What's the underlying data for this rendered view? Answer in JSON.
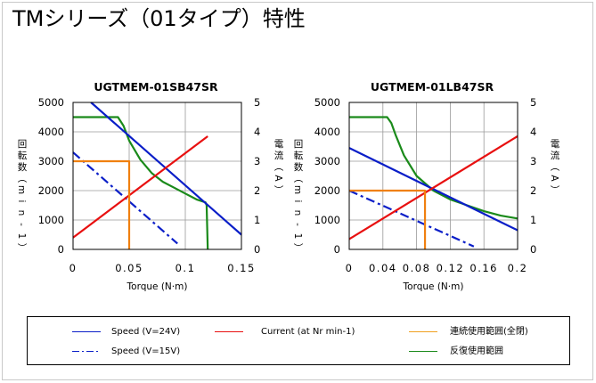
{
  "page": {
    "title": "TMシリーズ（01タイプ）特性"
  },
  "chart_data": [
    {
      "type": "line",
      "title": "UGTMEM-01SB47SR",
      "xlabel": "Torque (N·m)",
      "ylabel_left": "回転数（min-1）",
      "ylabel_right": "電流（A）",
      "xlim": [
        0,
        0.15
      ],
      "ylim_left": [
        0,
        5000
      ],
      "ylim_right": [
        0,
        5
      ],
      "x_ticks": [
        "0",
        "0.05",
        "0.1",
        "0.15"
      ],
      "x_tick_values": [
        0,
        0.05,
        0.1,
        0.15
      ],
      "y_ticks_left": [
        "0",
        "1000",
        "2000",
        "3000",
        "4000",
        "5000"
      ],
      "y_ticks_right": [
        "0",
        "1",
        "2",
        "3",
        "4",
        "5"
      ],
      "grid": true,
      "series": [
        {
          "key": "speed24",
          "axis": "left",
          "color": "#0a1ec8",
          "dash": "solid",
          "x": [
            0.016,
            0.15
          ],
          "y": [
            5000,
            500
          ]
        },
        {
          "key": "speed15",
          "axis": "left",
          "color": "#0a1ec8",
          "dash": "dashdot",
          "x": [
            0,
            0.093
          ],
          "y": [
            3300,
            200
          ]
        },
        {
          "key": "current",
          "axis": "right",
          "color": "#e81010",
          "dash": "solid",
          "x": [
            0,
            0.12
          ],
          "y": [
            0.4,
            3.85
          ]
        },
        {
          "key": "continuous",
          "axis": "left",
          "color": "#f08010",
          "dash": "solid",
          "x": [
            0,
            0.05,
            0.05
          ],
          "y": [
            3000,
            3000,
            0
          ]
        },
        {
          "key": "repeated",
          "axis": "left",
          "color": "#1a8a1a",
          "dash": "solid",
          "x": [
            0,
            0.04,
            0.045,
            0.05,
            0.06,
            0.07,
            0.08,
            0.09,
            0.1,
            0.11,
            0.118,
            0.119,
            0.12
          ],
          "y": [
            4500,
            4500,
            4200,
            3700,
            3050,
            2600,
            2300,
            2100,
            1900,
            1700,
            1600,
            1500,
            0
          ]
        }
      ]
    },
    {
      "type": "line",
      "title": "UGTMEM-01LB47SR",
      "xlabel": "Torque (N·m)",
      "ylabel_left": "回転数（min-1）",
      "ylabel_right": "電流（A）",
      "xlim": [
        0,
        0.2
      ],
      "ylim_left": [
        0,
        5000
      ],
      "ylim_right": [
        0,
        5
      ],
      "x_ticks": [
        "0",
        "0.04",
        "0.08",
        "0.12",
        "0.16",
        "0.2"
      ],
      "x_tick_values": [
        0,
        0.04,
        0.08,
        0.12,
        0.16,
        0.2
      ],
      "y_ticks_left": [
        "0",
        "1000",
        "2000",
        "3000",
        "4000",
        "5000"
      ],
      "y_ticks_right": [
        "0",
        "1",
        "2",
        "3",
        "4",
        "5"
      ],
      "grid": true,
      "series": [
        {
          "key": "speed24",
          "axis": "left",
          "color": "#0a1ec8",
          "dash": "solid",
          "x": [
            0,
            0.2
          ],
          "y": [
            3450,
            650
          ]
        },
        {
          "key": "speed15",
          "axis": "left",
          "color": "#0a1ec8",
          "dash": "dashdot",
          "x": [
            0,
            0.148
          ],
          "y": [
            2000,
            100
          ]
        },
        {
          "key": "current",
          "axis": "right",
          "color": "#e81010",
          "dash": "solid",
          "x": [
            0,
            0.2
          ],
          "y": [
            0.35,
            3.85
          ]
        },
        {
          "key": "continuous",
          "axis": "left",
          "color": "#f08010",
          "dash": "solid",
          "x": [
            0,
            0.09,
            0.09
          ],
          "y": [
            2000,
            2000,
            0
          ]
        },
        {
          "key": "repeated",
          "axis": "left",
          "color": "#1a8a1a",
          "dash": "solid",
          "x": [
            0,
            0.045,
            0.05,
            0.055,
            0.065,
            0.08,
            0.1,
            0.12,
            0.14,
            0.16,
            0.18,
            0.2
          ],
          "y": [
            4500,
            4500,
            4300,
            3900,
            3200,
            2500,
            2000,
            1700,
            1500,
            1300,
            1150,
            1050
          ]
        }
      ]
    }
  ],
  "legend": {
    "items": [
      {
        "key": "speed24",
        "label": "Speed (V=24V)",
        "color": "#0a1ec8",
        "dash": "solid"
      },
      {
        "key": "speed15",
        "label": "Speed (V=15V)",
        "color": "#0a1ec8",
        "dash": "dashdot"
      },
      {
        "key": "current",
        "label": "Current (at Nr min-1)",
        "color": "#e81010",
        "dash": "solid"
      },
      {
        "key": "continuous",
        "label": "連続使用範囲(全閉)",
        "color": "#f0a020",
        "dash": "solid"
      },
      {
        "key": "repeated",
        "label": "反復使用範囲",
        "color": "#1a8a1a",
        "dash": "solid"
      }
    ]
  }
}
